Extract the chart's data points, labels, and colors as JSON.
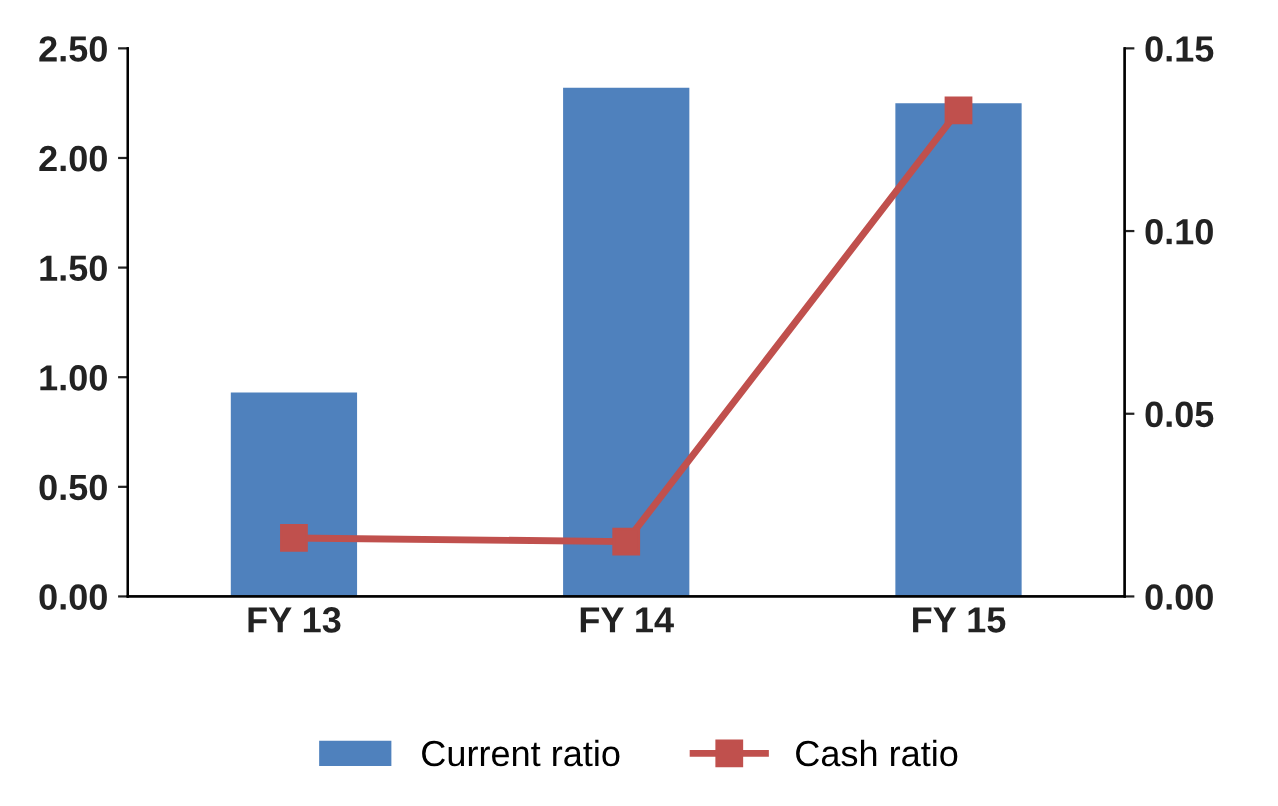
{
  "chart_data": {
    "type": "bar",
    "categories": [
      "FY 13",
      "FY 14",
      "FY 15"
    ],
    "series": [
      {
        "name": "Current ratio",
        "color": "#4f81bd",
        "values": [
          0.93,
          2.32,
          2.25
        ]
      },
      {
        "name": "Cash ratio",
        "type": "line",
        "axis": "y2",
        "color": "#c0504d",
        "values": [
          0.016,
          0.015,
          0.133
        ],
        "marker": "square"
      }
    ],
    "ylim": [
      0,
      2.5
    ],
    "yticks": [
      {
        "value": 0,
        "label": "0.00"
      },
      {
        "value": 0.5,
        "label": "0.50"
      },
      {
        "value": 1,
        "label": "1.00"
      },
      {
        "value": 1.5,
        "label": "1.50"
      },
      {
        "value": 2,
        "label": "2.00"
      },
      {
        "value": 2.5,
        "label": "2.50"
      }
    ],
    "y2lim": [
      0,
      0.15
    ],
    "y2ticks": [
      {
        "value": 0,
        "label": "0.00"
      },
      {
        "value": 0.05,
        "label": "0.05"
      },
      {
        "value": 0.1,
        "label": "0.10"
      },
      {
        "value": 0.15,
        "label": "0.15"
      }
    ],
    "grid": false,
    "legend": "bottom"
  }
}
